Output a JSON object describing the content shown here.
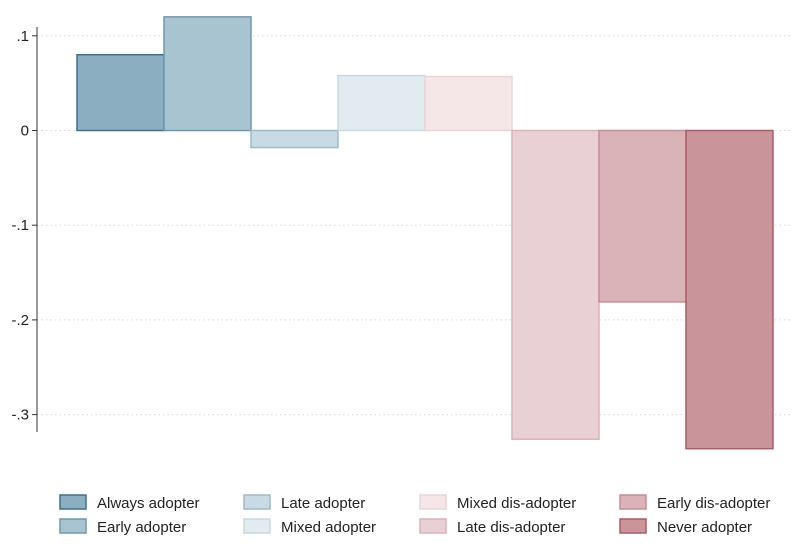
{
  "chart_data": {
    "type": "bar",
    "title": "",
    "xlabel": "",
    "ylabel": "",
    "ylim": [
      -0.35,
      0.12
    ],
    "yticks": [
      {
        "value": 0.1,
        "label": ".1"
      },
      {
        "value": 0,
        "label": "0"
      },
      {
        "value": -0.1,
        "label": "-.1"
      },
      {
        "value": -0.2,
        "label": "-.2"
      },
      {
        "value": -0.3,
        "label": "-.3"
      }
    ],
    "grid": true,
    "legend_position": "bottom",
    "series": [
      {
        "name": "Always adopter",
        "value": 0.08,
        "fill": "#8BAFC1",
        "stroke": "#3E7091"
      },
      {
        "name": "Early adopter",
        "value": 0.12,
        "fill": "#A9C4D1",
        "stroke": "#6E98B0"
      },
      {
        "name": "Late adopter",
        "value": -0.018,
        "fill": "#C8DAE3",
        "stroke": "#9DBACB"
      },
      {
        "name": "Mixed adopter",
        "value": 0.058,
        "fill": "#E2ECF0",
        "stroke": "#C7DAE2"
      },
      {
        "name": "Mixed dis-adopter",
        "value": 0.057,
        "fill": "#F5E6E8",
        "stroke": "#EDD3D7"
      },
      {
        "name": "Late dis-adopter",
        "value": -0.326,
        "fill": "#E9D0D4",
        "stroke": "#DDB1B8"
      },
      {
        "name": "Early dis-adopter",
        "value": -0.181,
        "fill": "#D9B3B7",
        "stroke": "#C98D94"
      },
      {
        "name": "Never adopter",
        "value": -0.336,
        "fill": "#C9959A",
        "stroke": "#AF5A64"
      }
    ]
  }
}
